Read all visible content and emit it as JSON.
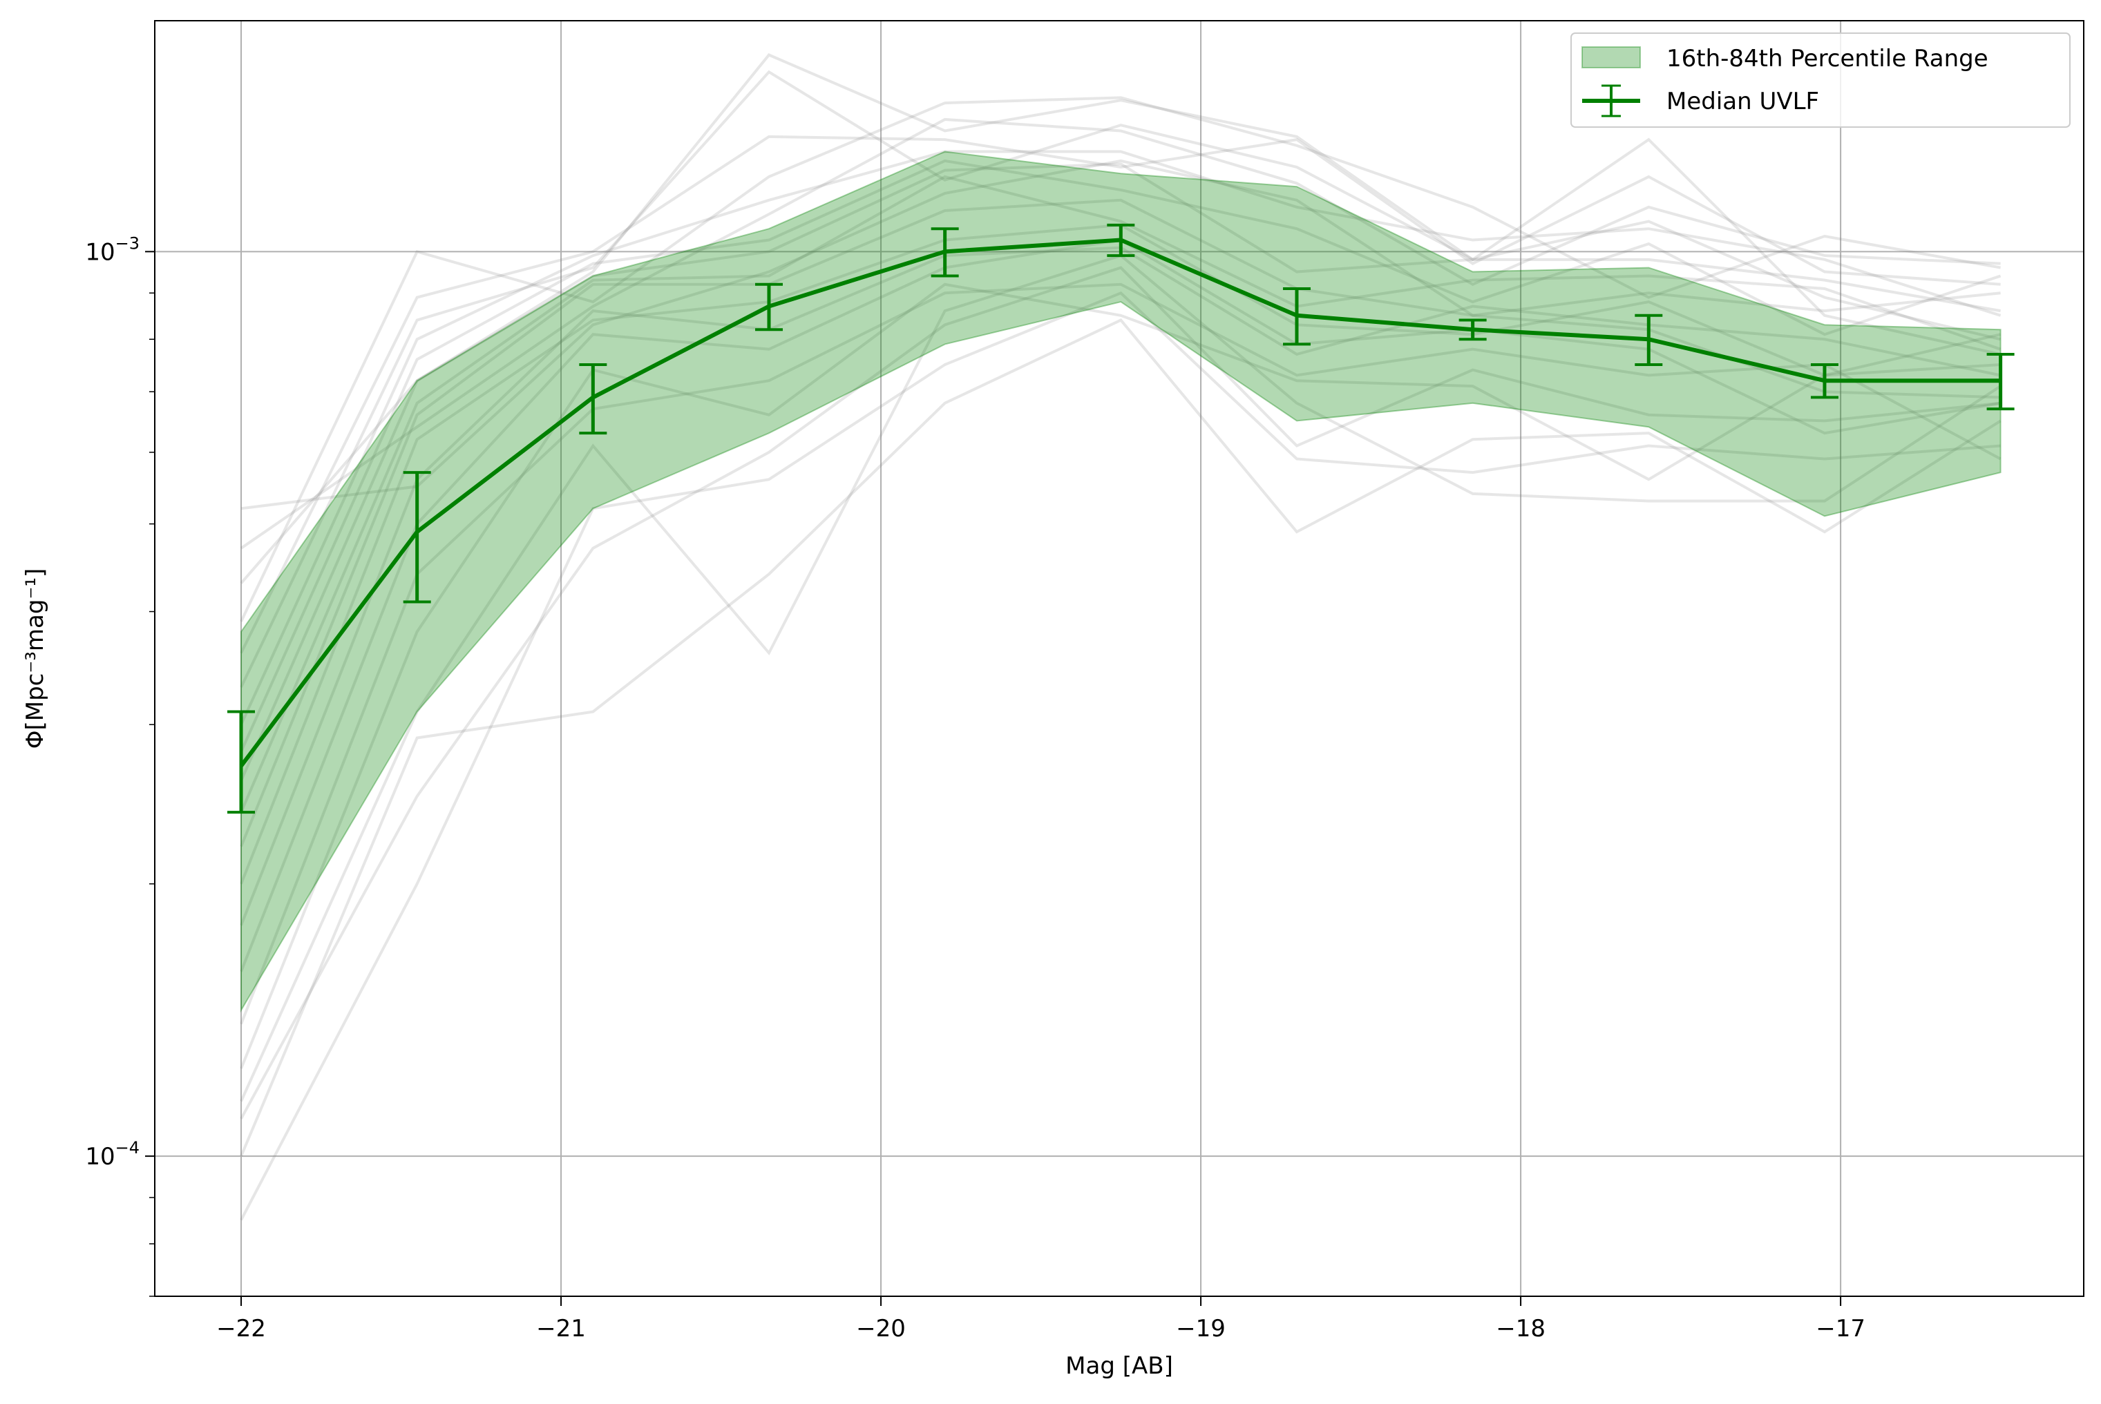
{
  "chart_data": {
    "type": "line",
    "xlabel": "Mag [AB]",
    "ylabel": "Φ[Mpc⁻³mag⁻¹]",
    "xlim": [
      -22.27,
      -16.24
    ],
    "ylim": [
      7e-05,
      0.0018
    ],
    "yscale": "log",
    "grid": true,
    "legend_position": "top-right",
    "x_ticks": [
      -22,
      -21,
      -20,
      -19,
      -18,
      -17
    ],
    "x_tick_labels": [
      "−22",
      "−21",
      "−20",
      "−19",
      "−18",
      "−17"
    ],
    "y_ticks": [
      0.0001,
      0.001
    ],
    "y_tick_labels": [
      {
        "base": "10",
        "exp": "−4"
      },
      {
        "base": "10",
        "exp": "−3"
      }
    ],
    "x": [
      -22.0,
      -21.45,
      -20.9,
      -20.35,
      -19.8,
      -19.25,
      -18.7,
      -18.15,
      -17.6,
      -17.05,
      -16.5
    ],
    "series": [
      {
        "name": "Median UVLF",
        "kind": "line-errorbar",
        "color": "#008000",
        "values": [
          0.00027,
          0.00049,
          0.00069,
          0.00087,
          0.001,
          0.00103,
          0.00085,
          0.00082,
          0.0008,
          0.00072,
          0.00072
        ],
        "err_low": [
          3e-05,
          8e-05,
          6e-05,
          5e-05,
          6e-05,
          4e-05,
          6e-05,
          2e-05,
          5e-05,
          3e-05,
          5e-05
        ],
        "err_high": [
          4e-05,
          8e-05,
          6e-05,
          5e-05,
          6e-05,
          4e-05,
          6e-05,
          2e-05,
          5e-05,
          3e-05,
          5e-05
        ]
      },
      {
        "name": "16th-84th Percentile Range",
        "kind": "band",
        "color": "#008000",
        "lower": [
          0.000145,
          0.00031,
          0.00052,
          0.00063,
          0.00079,
          0.00088,
          0.00065,
          0.00068,
          0.00064,
          0.00051,
          0.00057
        ],
        "upper": [
          0.00038,
          0.00072,
          0.00094,
          0.00106,
          0.00129,
          0.00122,
          0.00118,
          0.00095,
          0.00096,
          0.00083,
          0.00082
        ]
      }
    ],
    "background_realizations": {
      "color": "#808080",
      "lines": [
        [
          8.5e-05,
          0.0002,
          0.00052,
          0.00056,
          0.00075,
          0.0009,
          0.00059,
          0.00057,
          0.00061,
          0.00059,
          0.00061
        ],
        [
          0.0001,
          0.00029,
          0.00031,
          0.00044,
          0.00068,
          0.00084,
          0.00049,
          0.00062,
          0.00063,
          0.00049,
          0.00065
        ],
        [
          0.00011,
          0.00025,
          0.00047,
          0.0006,
          0.00083,
          0.00096,
          0.00061,
          0.00074,
          0.00066,
          0.00065,
          0.00068
        ],
        [
          0.000115,
          0.00031,
          0.00061,
          0.00036,
          0.00086,
          0.00099,
          0.00068,
          0.00054,
          0.00053,
          0.00053,
          0.00071
        ],
        [
          0.000125,
          0.00038,
          0.00074,
          0.00066,
          0.00092,
          0.00085,
          0.00072,
          0.00071,
          0.00056,
          0.00073,
          0.00075
        ],
        [
          0.00014,
          0.00044,
          0.00067,
          0.00072,
          0.0009,
          0.00092,
          0.00073,
          0.00078,
          0.00073,
          0.00075,
          0.00059
        ],
        [
          0.00016,
          0.0005,
          0.00081,
          0.00078,
          0.00096,
          0.00103,
          0.00079,
          0.00082,
          0.00078,
          0.00063,
          0.00068
        ],
        [
          0.00018,
          0.00056,
          0.00086,
          0.00082,
          0.00099,
          0.00101,
          0.00077,
          0.00087,
          0.00083,
          0.0008,
          0.00073
        ],
        [
          0.0002,
          0.00062,
          0.00084,
          0.00088,
          0.00103,
          0.00107,
          0.00083,
          0.00081,
          0.00088,
          0.00073,
          0.00081
        ],
        [
          0.00022,
          0.00066,
          0.00092,
          0.00092,
          0.00111,
          0.00114,
          0.00091,
          0.00085,
          0.0009,
          0.00086,
          0.0009
        ],
        [
          0.00024,
          0.00068,
          0.00093,
          0.00094,
          0.00121,
          0.00108,
          0.00087,
          0.00093,
          0.00094,
          0.00091,
          0.00078
        ],
        [
          0.00026,
          0.00072,
          0.00094,
          0.001,
          0.00123,
          0.00125,
          0.00095,
          0.00098,
          0.00098,
          0.00093,
          0.00086
        ],
        [
          0.00028,
          0.00076,
          0.00097,
          0.00103,
          0.00126,
          0.00117,
          0.00106,
          0.00088,
          0.00102,
          0.00081,
          0.00094
        ],
        [
          0.0003,
          0.0008,
          0.00099,
          0.00114,
          0.00129,
          0.00129,
          0.00112,
          0.00103,
          0.00106,
          0.00098,
          0.00085
        ],
        [
          0.00033,
          0.00084,
          0.00096,
          0.00158,
          0.0012,
          0.00138,
          0.00124,
          0.00098,
          0.00108,
          0.00089,
          0.0008
        ],
        [
          0.00036,
          0.00089,
          0.001,
          0.00134,
          0.00133,
          0.00124,
          0.00133,
          0.00097,
          0.00121,
          0.00095,
          0.00092
        ],
        [
          0.00039,
          0.001,
          0.00088,
          0.00121,
          0.00146,
          0.00148,
          0.00131,
          0.00112,
          0.00089,
          0.00104,
          0.00096
        ],
        [
          0.00043,
          0.00072,
          0.00095,
          0.00165,
          0.00136,
          0.00147,
          0.00134,
          0.00098,
          0.00133,
          0.00085,
          0.00077
        ],
        [
          0.00047,
          0.00064,
          0.00087,
          0.0011,
          0.0014,
          0.00136,
          0.00119,
          0.00092,
          0.00112,
          0.00099,
          0.00097
        ],
        [
          0.00052,
          0.00055,
          0.00083,
          0.00095,
          0.00116,
          0.00126,
          0.00114,
          0.00085,
          0.00082,
          0.0007,
          0.00069
        ]
      ]
    },
    "legend": [
      {
        "label": "16th-84th Percentile Range",
        "type": "band"
      },
      {
        "label": "Median UVLF",
        "type": "errorbar-line"
      }
    ]
  }
}
